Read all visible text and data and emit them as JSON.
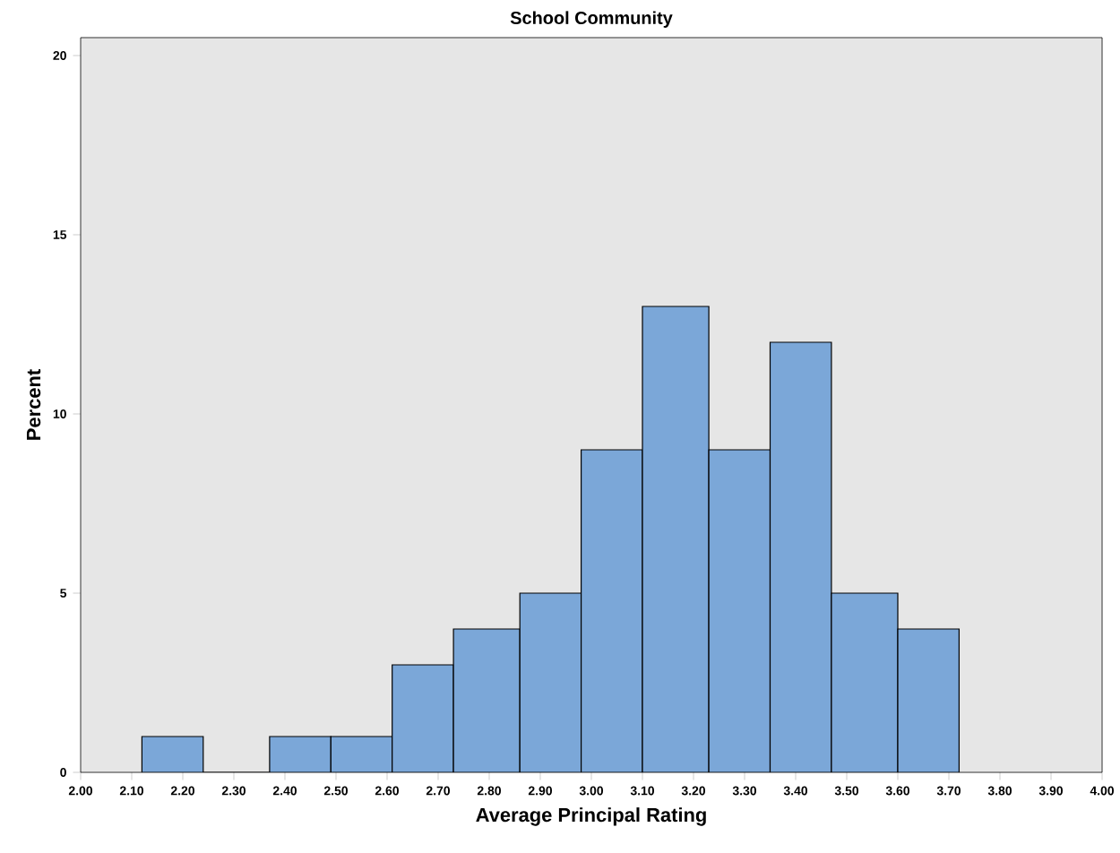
{
  "chart_data": {
    "type": "histogram",
    "title": "School Community",
    "xlabel": "Average Principal Rating",
    "ylabel": "Percent",
    "bins": [
      2.12,
      2.24,
      2.37,
      2.49,
      2.61,
      2.73,
      2.86,
      2.98,
      3.1,
      3.23,
      3.35,
      3.47,
      3.6,
      3.72
    ],
    "values": [
      1,
      0,
      1,
      1,
      3,
      4,
      5,
      9,
      13,
      9,
      12,
      5,
      4
    ],
    "color": "#7ba7d8",
    "xlim": [
      2.0,
      4.0
    ],
    "xticks": [
      {
        "value": 2.0,
        "label": "2.00"
      },
      {
        "value": 2.1,
        "label": "2.10"
      },
      {
        "value": 2.2,
        "label": "2.20"
      },
      {
        "value": 2.3,
        "label": "2.30"
      },
      {
        "value": 2.4,
        "label": "2.40"
      },
      {
        "value": 2.5,
        "label": "2.50"
      },
      {
        "value": 2.6,
        "label": "2.60"
      },
      {
        "value": 2.7,
        "label": "2.70"
      },
      {
        "value": 2.8,
        "label": "2.80"
      },
      {
        "value": 2.9,
        "label": "2.90"
      },
      {
        "value": 3.0,
        "label": "3.00"
      },
      {
        "value": 3.1,
        "label": "3.10"
      },
      {
        "value": 3.2,
        "label": "3.20"
      },
      {
        "value": 3.3,
        "label": "3.30"
      },
      {
        "value": 3.4,
        "label": "3.40"
      },
      {
        "value": 3.5,
        "label": "3.50"
      },
      {
        "value": 3.6,
        "label": "3.60"
      },
      {
        "value": 3.7,
        "label": "3.70"
      },
      {
        "value": 3.8,
        "label": "3.80"
      },
      {
        "value": 3.9,
        "label": "3.90"
      },
      {
        "value": 4.0,
        "label": "4.00"
      }
    ],
    "ylim": [
      0,
      20.5
    ],
    "yticks": [
      0,
      5,
      10,
      15,
      20
    ]
  }
}
